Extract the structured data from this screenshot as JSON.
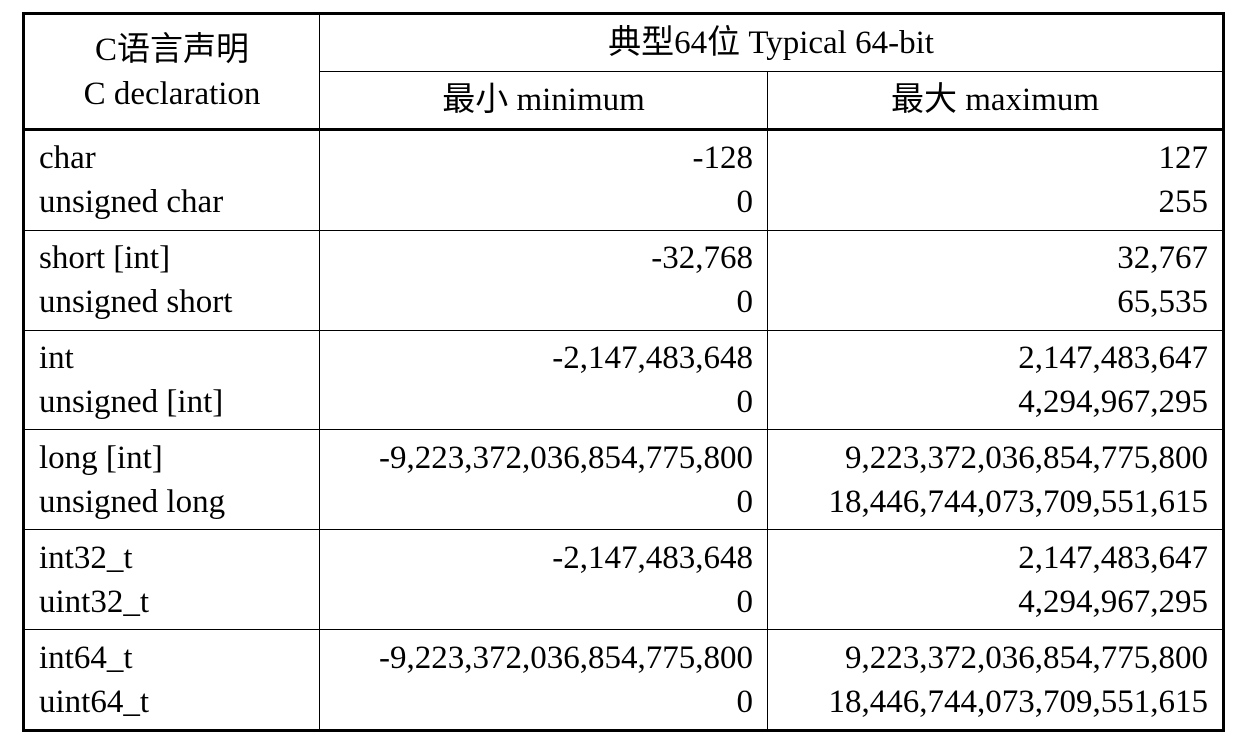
{
  "header": {
    "decl_zh": "C语言声明",
    "decl_en": "C declaration",
    "group": "典型64位 Typical 64-bit",
    "min": "最小 minimum",
    "max": "最大 maximum"
  },
  "rows": [
    {
      "names": [
        "char",
        "unsigned char"
      ],
      "mins": [
        "-128",
        "0"
      ],
      "maxs": [
        "127",
        "255"
      ]
    },
    {
      "names": [
        "short [int]",
        "unsigned short"
      ],
      "mins": [
        "-32,768",
        "0"
      ],
      "maxs": [
        "32,767",
        "65,535"
      ]
    },
    {
      "names": [
        "int",
        "unsigned [int]"
      ],
      "mins": [
        "-2,147,483,648",
        "0"
      ],
      "maxs": [
        "2,147,483,647",
        "4,294,967,295"
      ]
    },
    {
      "names": [
        "long [int]",
        "unsigned long"
      ],
      "mins": [
        "-9,223,372,036,854,775,800",
        "0"
      ],
      "maxs": [
        "9,223,372,036,854,775,800",
        "18,446,744,073,709,551,615"
      ]
    },
    {
      "names": [
        "int32_t",
        "uint32_t"
      ],
      "mins": [
        "-2,147,483,648",
        "0"
      ],
      "maxs": [
        "2,147,483,647",
        "4,294,967,295"
      ]
    },
    {
      "names": [
        "int64_t",
        "uint64_t"
      ],
      "mins": [
        "-9,223,372,036,854,775,800",
        "0"
      ],
      "maxs": [
        "9,223,372,036,854,775,800",
        "18,446,744,073,709,551,615"
      ]
    }
  ]
}
